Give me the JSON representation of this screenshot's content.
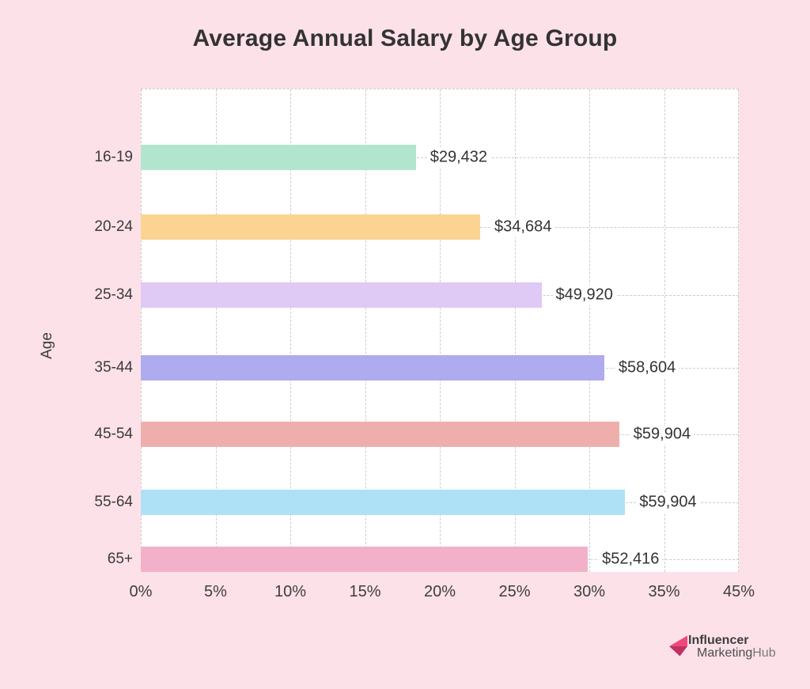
{
  "page": {
    "background": "#fde1e9"
  },
  "title": "Average Annual Salary by Age Group",
  "chart_data": {
    "type": "bar",
    "orientation": "horizontal",
    "title": "Average Annual Salary by Age Group",
    "ylabel": "Age",
    "xlabel": "",
    "categories": [
      "16-19",
      "20-24",
      "25-34",
      "35-44",
      "45-54",
      "55-64",
      "65+"
    ],
    "values": [
      29432,
      34684,
      49920,
      58604,
      59904,
      59904,
      52416
    ],
    "value_labels": [
      "$29,432",
      "$34,684",
      "$49,920",
      "$58,604",
      "$59,904",
      "$59,904",
      "$52,416"
    ],
    "bar_lengths_axis_pct": [
      18.4,
      22.7,
      26.8,
      31.0,
      32.0,
      32.4,
      29.9
    ],
    "bar_colors": [
      "#b1e5cd",
      "#fbd491",
      "#dfc9f5",
      "#afabef",
      "#eeafac",
      "#aee1f6",
      "#f2b1c9"
    ],
    "x_tick_labels": [
      "0%",
      "5%",
      "10%",
      "15%",
      "20%",
      "25%",
      "30%",
      "35%",
      "45%"
    ],
    "x_axis_numeric_max": 40,
    "xlim": [
      0,
      40
    ],
    "grid": "dashed",
    "legend": "none",
    "plot_background": "#ffffff",
    "grid_color": "#cccccc"
  },
  "footer_logo": {
    "line1": "Influencer",
    "line2_part1": "Marketing",
    "line2_part2": "Hub",
    "icon": "influencer-marketinghub-arrow-icon",
    "icon_color_bright": "#f0487c",
    "icon_color_dark": "#bf3264"
  }
}
